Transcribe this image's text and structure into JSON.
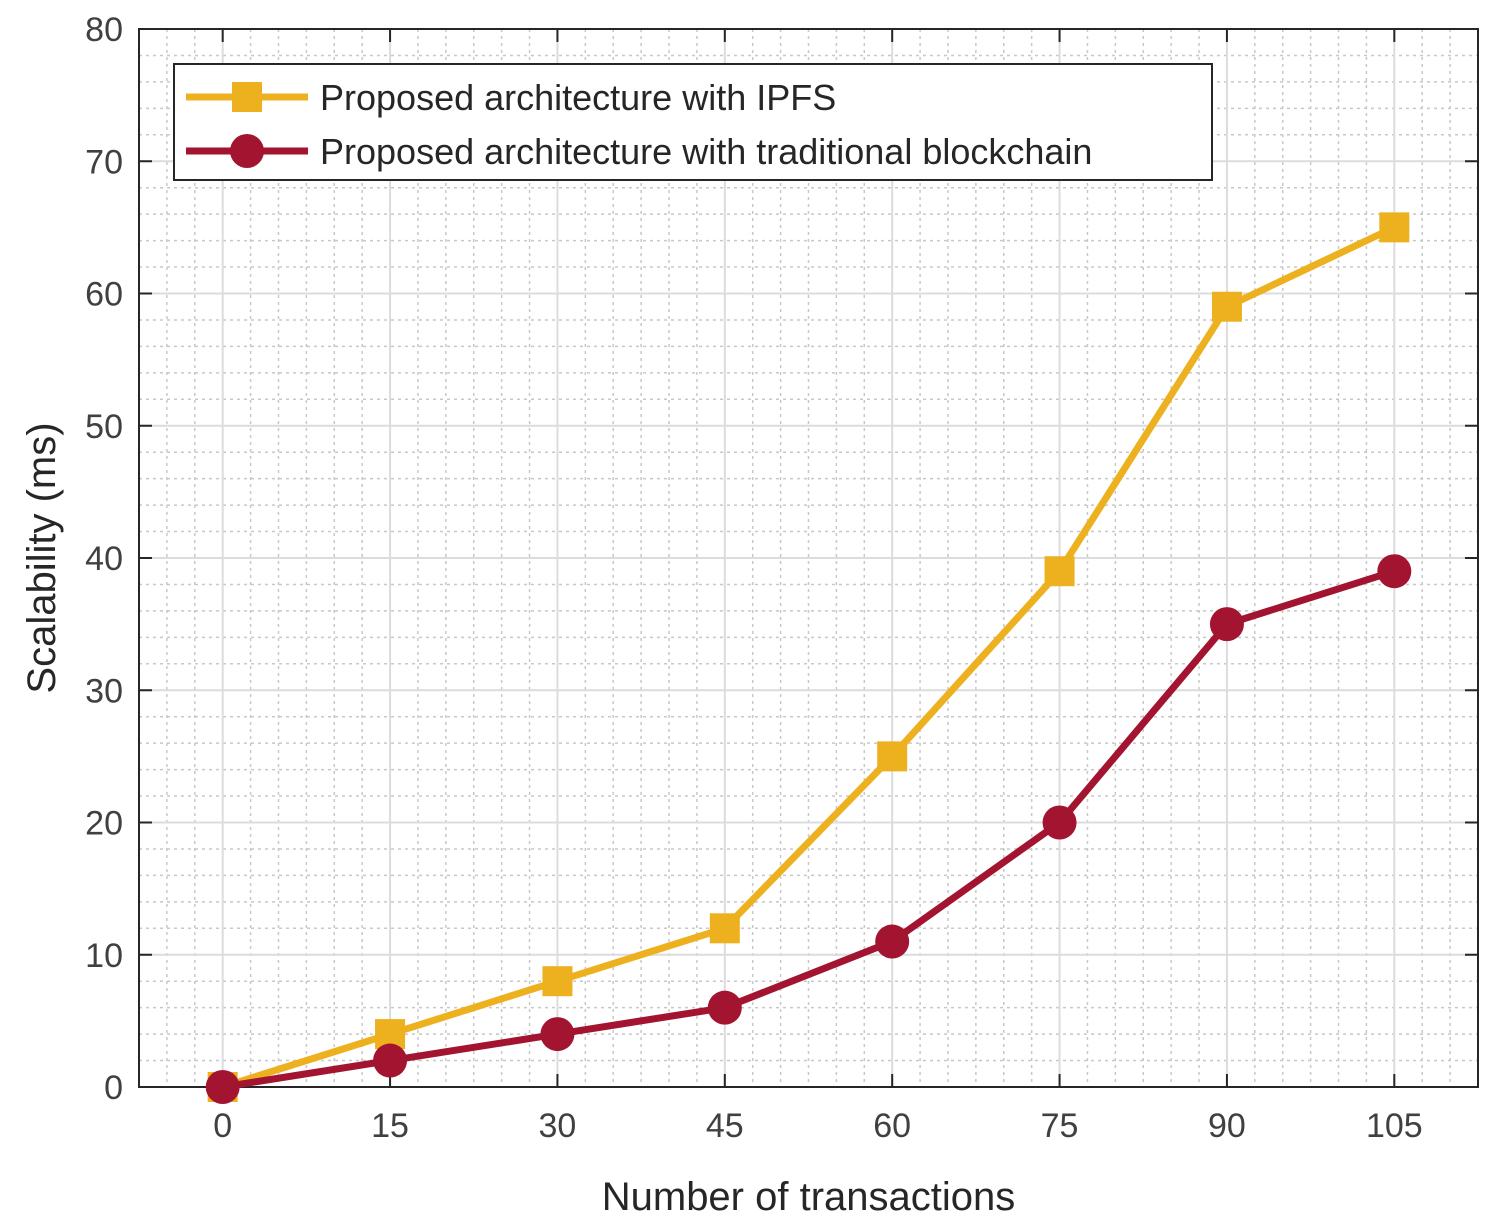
{
  "chart_data": {
    "type": "line",
    "title": "",
    "xlabel": "Number of transactions",
    "ylabel": "Scalability (ms)",
    "x": [
      0,
      15,
      30,
      45,
      60,
      75,
      90,
      105
    ],
    "xticks": [
      "0",
      "15",
      "30",
      "45",
      "60",
      "75",
      "90",
      "105"
    ],
    "yticks": [
      "0",
      "10",
      "20",
      "30",
      "40",
      "50",
      "60",
      "70",
      "80"
    ],
    "xlim": [
      -7.5,
      112.5
    ],
    "ylim": [
      0,
      80
    ],
    "grid": true,
    "minor_grid": true,
    "legend_position": "top-left",
    "series": [
      {
        "name": "Proposed architecture with IPFS",
        "color": "#EDB120",
        "marker": "square",
        "values": [
          0,
          4,
          8,
          12,
          25,
          39,
          59,
          65
        ]
      },
      {
        "name": "Proposed architecture with traditional blockchain",
        "color": "#A2142F",
        "marker": "circle",
        "values": [
          0,
          2,
          4,
          6,
          11,
          20,
          35,
          39
        ]
      }
    ]
  }
}
